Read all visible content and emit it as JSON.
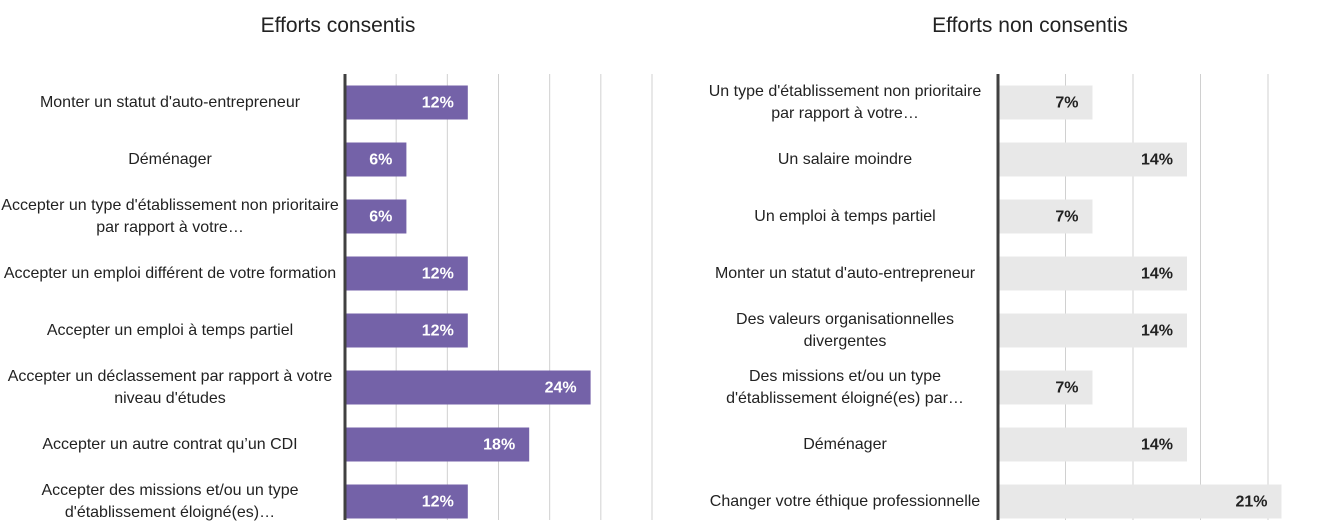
{
  "chart_data": [
    {
      "type": "bar",
      "orientation": "horizontal",
      "title": "Efforts consentis",
      "categories": [
        "Monter un statut d'auto-entrepreneur",
        "Déménager",
        "Accepter un type d'établissement non prioritaire par rapport à votre…",
        "Accepter un emploi différent de votre formation",
        "Accepter un emploi à temps partiel",
        "Accepter un déclassement par rapport à votre niveau d'études",
        "Accepter un autre contrat qu’un CDI",
        "Accepter des missions et/ou un type d'établissement éloigné(es)…"
      ],
      "values": [
        12,
        6,
        6,
        12,
        12,
        24,
        18,
        12
      ],
      "value_labels": [
        "12%",
        "6%",
        "6%",
        "12%",
        "12%",
        "24%",
        "18%",
        "12%"
      ],
      "color": "#7462a8",
      "label_color": "#ffffff",
      "xlim": [
        0,
        30
      ],
      "xticks": [
        0,
        5,
        10,
        15,
        20,
        25,
        30
      ],
      "grid": true
    },
    {
      "type": "bar",
      "orientation": "horizontal",
      "title": "Efforts non consentis",
      "categories": [
        "Un type d'établissement non prioritaire par rapport à votre…",
        "Un salaire moindre",
        "Un emploi à temps partiel",
        "Monter un statut d'auto-entrepreneur",
        "Des valeurs organisationnelles divergentes",
        "Des missions et/ou un type d'établissement éloigné(es) par…",
        "Déménager",
        "Changer votre éthique professionnelle"
      ],
      "values": [
        7,
        14,
        7,
        14,
        14,
        7,
        14,
        21
      ],
      "value_labels": [
        "7%",
        "14%",
        "7%",
        "14%",
        "14%",
        "7%",
        "14%",
        "21%"
      ],
      "color": "#e8e8e8",
      "label_color": "#222222",
      "xlim": [
        0,
        24
      ],
      "xticks": [
        0,
        5,
        10,
        15,
        20
      ],
      "grid": true
    }
  ]
}
